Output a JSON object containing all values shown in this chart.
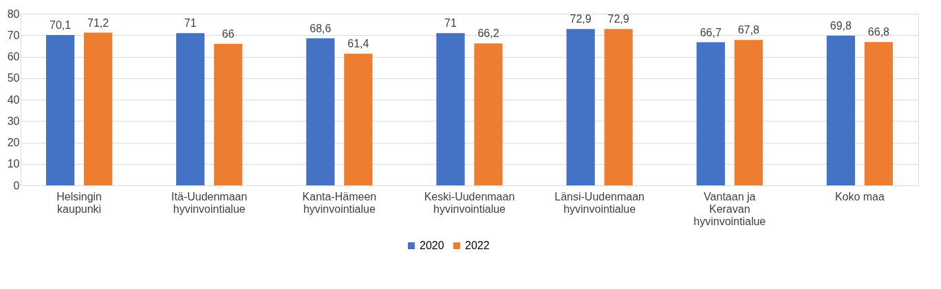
{
  "chart_data": {
    "type": "bar",
    "categories": [
      "Helsingin kaupunki",
      "Itä-Uudenmaan hyvinvointialue",
      "Kanta-Hämeen hyvinvointialue",
      "Keski-Uudenmaan hyvinvointialue",
      "Länsi-Uudenmaan hyvinvointialue",
      "Vantaan ja Keravan hyvinvointialue",
      "Koko maa"
    ],
    "series": [
      {
        "name": "2020",
        "color": "#4472c4",
        "values": [
          70.1,
          71,
          68.6,
          71,
          72.9,
          66.7,
          69.8
        ],
        "value_labels": [
          "70,1",
          "71",
          "68,6",
          "71",
          "72,9",
          "66,7",
          "69,8"
        ]
      },
      {
        "name": "2022",
        "color": "#ed7d31",
        "values": [
          71.2,
          66,
          61.4,
          66.2,
          72.9,
          67.8,
          66.8
        ],
        "value_labels": [
          "71,2",
          "66",
          "61,4",
          "66,2",
          "72,9",
          "67,8",
          "66,8"
        ]
      }
    ],
    "ylim": [
      0,
      80
    ],
    "yticks": [
      0,
      10,
      20,
      30,
      40,
      50,
      60,
      70,
      80
    ],
    "grid": "y",
    "legend": "bottom"
  }
}
